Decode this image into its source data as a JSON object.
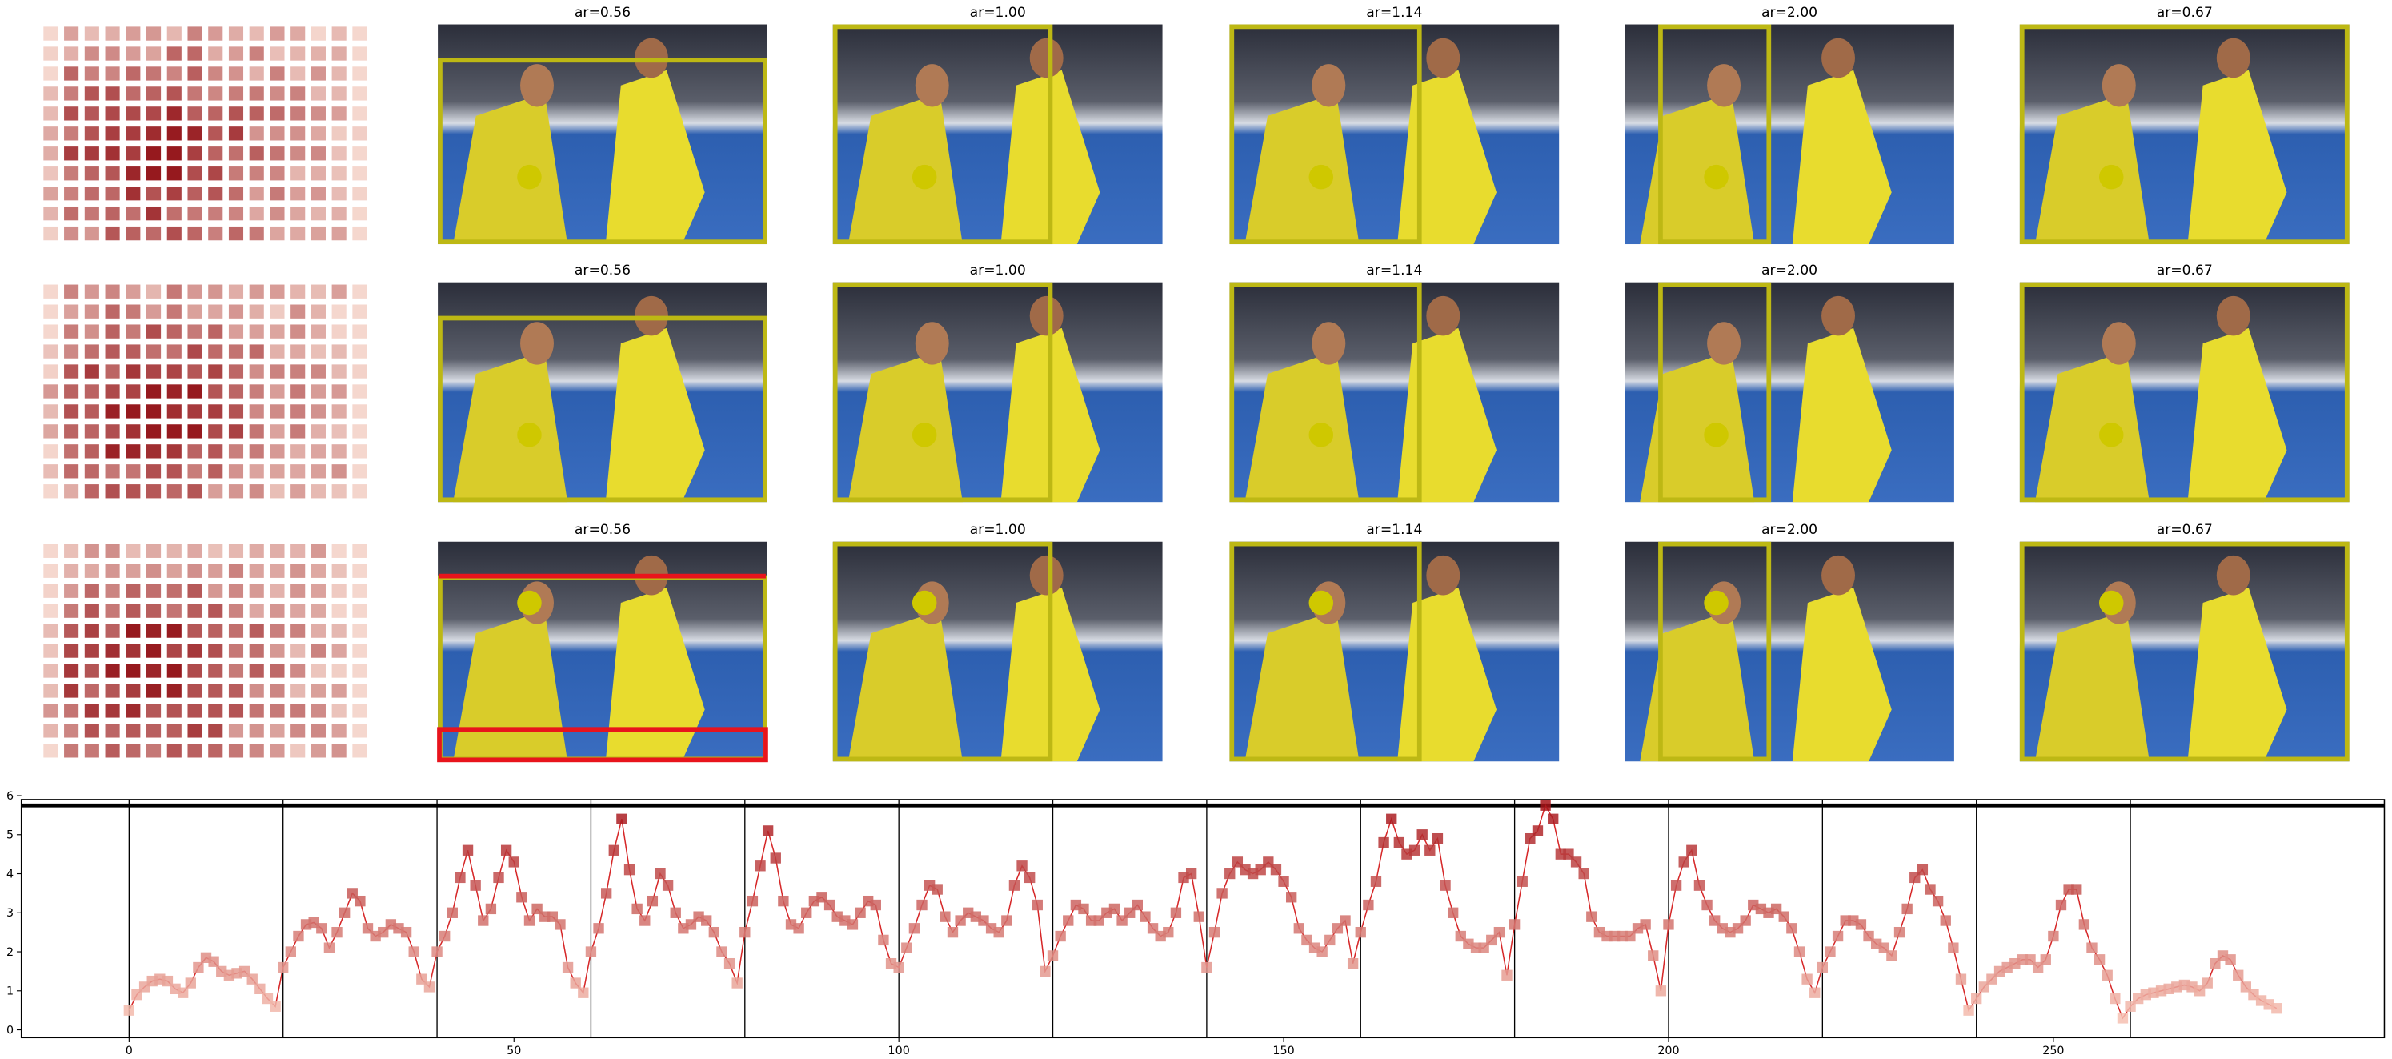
{
  "image_titles": [
    [
      "ar=0.56",
      "ar=1.00",
      "ar=1.14",
      "ar=2.00",
      "ar=0.67"
    ],
    [
      "ar=0.56",
      "ar=1.00",
      "ar=1.14",
      "ar=2.00",
      "ar=0.67"
    ],
    [
      "ar=0.56",
      "ar=1.00",
      "ar=1.14",
      "ar=2.00",
      "ar=0.67"
    ]
  ],
  "chart_data": {
    "type": "line",
    "x": [
      0,
      1,
      2,
      3,
      4,
      5,
      6,
      7,
      8,
      9,
      10,
      11,
      12,
      13,
      14,
      15,
      16,
      17,
      18,
      19,
      20,
      21,
      22,
      23,
      24,
      25,
      26,
      27,
      28,
      29,
      30,
      31,
      32,
      33,
      34,
      35,
      36,
      37,
      38,
      39,
      40,
      41,
      42,
      43,
      44,
      45,
      46,
      47,
      48,
      49,
      50,
      51,
      52,
      53,
      54,
      55,
      56,
      57,
      58,
      59,
      60,
      61,
      62,
      63,
      64,
      65,
      66,
      67,
      68,
      69,
      70,
      71,
      72,
      73,
      74,
      75,
      76,
      77,
      78,
      79,
      80,
      81,
      82,
      83,
      84,
      85,
      86,
      87,
      88,
      89,
      90,
      91,
      92,
      93,
      94,
      95,
      96,
      97,
      98,
      99,
      100,
      101,
      102,
      103,
      104,
      105,
      106,
      107,
      108,
      109,
      110,
      111,
      112,
      113,
      114,
      115,
      116,
      117,
      118,
      119,
      120,
      121,
      122,
      123,
      124,
      125,
      126,
      127,
      128,
      129,
      130,
      131,
      132,
      133,
      134,
      135,
      136,
      137,
      138,
      139,
      140,
      141,
      142,
      143,
      144,
      145,
      146,
      147,
      148,
      149,
      150,
      151,
      152,
      153,
      154,
      155,
      156,
      157,
      158,
      159,
      160,
      161,
      162,
      163,
      164,
      165,
      166,
      167,
      168,
      169,
      170,
      171,
      172,
      173,
      174,
      175,
      176,
      177,
      178,
      179,
      180,
      181,
      182,
      183,
      184,
      185,
      186,
      187,
      188,
      189,
      190,
      191,
      192,
      193,
      194,
      195,
      196,
      197,
      198,
      199,
      200,
      201,
      202,
      203,
      204,
      205,
      206,
      207,
      208,
      209,
      210,
      211,
      212,
      213,
      214,
      215,
      216,
      217,
      218,
      219,
      220,
      221,
      222,
      223,
      224,
      225,
      226,
      227,
      228,
      229,
      230,
      231,
      232,
      233,
      234,
      235,
      236,
      237,
      238,
      239,
      240,
      241,
      242,
      243,
      244,
      245,
      246,
      247,
      248,
      249,
      250,
      251,
      252,
      253,
      254,
      255,
      256,
      257,
      258,
      259,
      260,
      261,
      262,
      263,
      264,
      265,
      266,
      267,
      268,
      269,
      270,
      271,
      272,
      273,
      274,
      275,
      276,
      277,
      278,
      279
    ],
    "values": [
      0.5,
      0.9,
      1.1,
      1.25,
      1.3,
      1.25,
      1.05,
      0.95,
      1.2,
      1.6,
      1.85,
      1.75,
      1.5,
      1.4,
      1.45,
      1.5,
      1.3,
      1.05,
      0.8,
      0.6,
      1.6,
      2.0,
      2.4,
      2.7,
      2.75,
      2.6,
      2.1,
      2.5,
      3.0,
      3.5,
      3.3,
      2.6,
      2.4,
      2.5,
      2.7,
      2.6,
      2.5,
      2.0,
      1.3,
      1.1,
      2.0,
      2.4,
      3.0,
      3.9,
      4.6,
      3.7,
      2.8,
      3.1,
      3.9,
      4.6,
      4.3,
      3.4,
      2.8,
      3.1,
      2.9,
      2.9,
      2.7,
      1.6,
      1.2,
      0.95,
      2.0,
      2.6,
      3.5,
      4.6,
      5.4,
      4.1,
      3.1,
      2.8,
      3.3,
      4.0,
      3.7,
      3.0,
      2.6,
      2.7,
      2.9,
      2.8,
      2.5,
      2.0,
      1.7,
      1.2,
      2.5,
      3.3,
      4.2,
      5.1,
      4.4,
      3.3,
      2.7,
      2.6,
      3.0,
      3.3,
      3.4,
      3.2,
      2.9,
      2.8,
      2.7,
      3.0,
      3.3,
      3.2,
      2.3,
      1.7,
      1.6,
      2.1,
      2.6,
      3.2,
      3.7,
      3.6,
      2.9,
      2.5,
      2.8,
      3.0,
      2.9,
      2.8,
      2.6,
      2.5,
      2.8,
      3.7,
      4.2,
      3.9,
      3.2,
      1.5,
      1.9,
      2.4,
      2.8,
      3.2,
      3.1,
      2.8,
      2.8,
      3.0,
      3.1,
      2.8,
      3.0,
      3.2,
      2.9,
      2.6,
      2.4,
      2.5,
      3.0,
      3.9,
      4.0,
      2.9,
      1.6,
      2.5,
      3.5,
      4.0,
      4.3,
      4.1,
      4.0,
      4.1,
      4.3,
      4.1,
      3.8,
      3.4,
      2.6,
      2.3,
      2.1,
      2.0,
      2.3,
      2.6,
      2.8,
      1.7,
      2.5,
      3.2,
      3.8,
      4.8,
      5.4,
      4.8,
      4.5,
      4.6,
      5.0,
      4.6,
      4.9,
      3.7,
      3.0,
      2.4,
      2.2,
      2.1,
      2.1,
      2.3,
      2.5,
      1.4,
      2.7,
      3.8,
      4.9,
      5.1,
      5.75,
      5.4,
      4.5,
      4.5,
      4.3,
      4.0,
      2.9,
      2.5,
      2.4,
      2.4,
      2.4,
      2.4,
      2.6,
      2.7,
      1.9,
      1.0,
      2.7,
      3.7,
      4.3,
      4.6,
      3.7,
      3.2,
      2.8,
      2.6,
      2.5,
      2.6,
      2.8,
      3.2,
      3.1,
      3.0,
      3.1,
      2.9,
      2.6,
      2.0,
      1.3,
      0.95,
      1.6,
      2.0,
      2.4,
      2.8,
      2.8,
      2.7,
      2.4,
      2.2,
      2.1,
      1.9,
      2.5,
      3.1,
      3.9,
      4.1,
      3.6,
      3.3,
      2.8,
      2.1,
      1.3,
      0.5,
      0.8,
      1.1,
      1.3,
      1.5,
      1.6,
      1.7,
      1.8,
      1.8,
      1.6,
      1.8,
      2.4,
      3.2,
      3.6,
      3.6,
      2.7,
      2.1,
      1.8,
      1.4,
      0.8,
      0.3,
      0.6,
      0.8,
      0.9,
      0.95,
      1.0,
      1.05,
      1.1,
      1.15,
      1.1,
      1.0,
      1.2,
      1.7,
      1.9,
      1.8,
      1.4,
      1.1,
      0.9,
      0.75,
      0.65,
      0.55
    ],
    "color": "#d62728",
    "marker_colors": [
      "#fdd0c0",
      "#a50f15"
    ],
    "xlim": [
      -14,
      293
    ],
    "ylim": [
      -0.2,
      5.9
    ],
    "xticks": [
      0,
      50,
      100,
      150,
      200,
      250
    ],
    "yticks": [
      0,
      1,
      2,
      3,
      4,
      5,
      6
    ],
    "vlines": [
      0,
      20,
      40,
      60,
      80,
      100,
      120,
      140,
      160,
      180,
      200,
      220,
      240,
      260
    ],
    "hline": 5.75
  }
}
